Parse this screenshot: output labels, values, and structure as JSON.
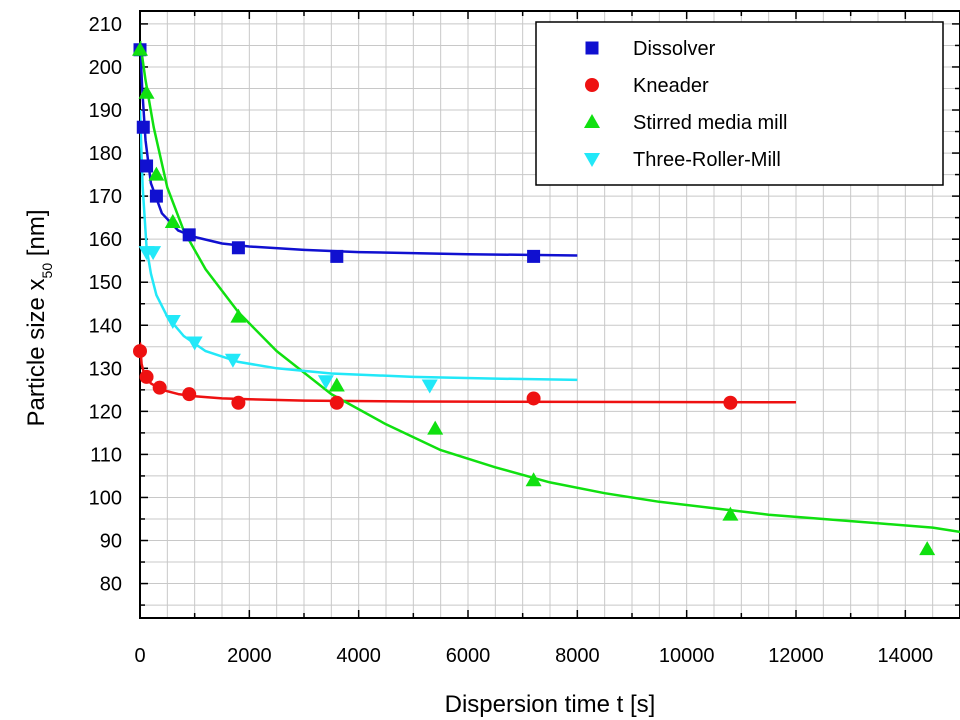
{
  "chart_data": {
    "type": "scatter",
    "xlabel": "Dispersion time t [s]",
    "ylabel": {
      "prefix": "Particle size x",
      "subscript": "50",
      "suffix": " [nm]"
    },
    "xlim": [
      0,
      15000
    ],
    "ylim": [
      72,
      213
    ],
    "x_ticks": [
      0,
      2000,
      4000,
      6000,
      8000,
      10000,
      12000,
      14000
    ],
    "y_ticks": [
      80,
      90,
      100,
      110,
      120,
      130,
      140,
      150,
      160,
      170,
      180,
      190,
      200,
      210
    ],
    "grid": true,
    "legend_position": "top-right",
    "series": [
      {
        "name": "Dissolver",
        "color": "#1010d0",
        "marker": "square",
        "points": [
          [
            0,
            204
          ],
          [
            60,
            186
          ],
          [
            120,
            177
          ],
          [
            300,
            170
          ],
          [
            900,
            161
          ],
          [
            1800,
            158
          ],
          [
            3600,
            156
          ],
          [
            7200,
            156
          ]
        ],
        "fit": [
          [
            0,
            206
          ],
          [
            40,
            195
          ],
          [
            100,
            183
          ],
          [
            200,
            173
          ],
          [
            400,
            166
          ],
          [
            700,
            162
          ],
          [
            1000,
            160.5
          ],
          [
            1500,
            159
          ],
          [
            2000,
            158.3
          ],
          [
            3000,
            157.5
          ],
          [
            4000,
            157
          ],
          [
            6000,
            156.5
          ],
          [
            8000,
            156.2
          ]
        ]
      },
      {
        "name": "Kneader",
        "color": "#ee1111",
        "marker": "circle",
        "points": [
          [
            0,
            134
          ],
          [
            120,
            128
          ],
          [
            360,
            125.5
          ],
          [
            900,
            124
          ],
          [
            1800,
            122
          ],
          [
            3600,
            122
          ],
          [
            7200,
            123
          ],
          [
            10800,
            122
          ]
        ],
        "fit": [
          [
            0,
            136
          ],
          [
            30,
            131
          ],
          [
            80,
            128.5
          ],
          [
            200,
            126.5
          ],
          [
            400,
            125
          ],
          [
            700,
            124
          ],
          [
            1000,
            123.5
          ],
          [
            1500,
            123
          ],
          [
            2000,
            122.8
          ],
          [
            3000,
            122.5
          ],
          [
            5000,
            122.3
          ],
          [
            8000,
            122.2
          ],
          [
            12000,
            122.1
          ]
        ]
      },
      {
        "name": "Stirred media mill",
        "color": "#10e010",
        "marker": "triangle-up",
        "points": [
          [
            0,
            204
          ],
          [
            120,
            194
          ],
          [
            300,
            175
          ],
          [
            600,
            164
          ],
          [
            1800,
            142
          ],
          [
            3600,
            126
          ],
          [
            5400,
            116
          ],
          [
            7200,
            104
          ],
          [
            10800,
            96
          ],
          [
            14400,
            88
          ]
        ],
        "fit": [
          [
            0,
            206
          ],
          [
            100,
            197
          ],
          [
            250,
            186
          ],
          [
            500,
            172
          ],
          [
            800,
            162
          ],
          [
            1200,
            153
          ],
          [
            1800,
            143
          ],
          [
            2500,
            134
          ],
          [
            3500,
            124
          ],
          [
            4500,
            117
          ],
          [
            5500,
            111
          ],
          [
            6500,
            107
          ],
          [
            7500,
            103.5
          ],
          [
            8500,
            101
          ],
          [
            9500,
            99
          ],
          [
            10500,
            97.5
          ],
          [
            11500,
            96
          ],
          [
            12500,
            95
          ],
          [
            13500,
            94
          ],
          [
            14500,
            93
          ],
          [
            15000,
            92
          ]
        ]
      },
      {
        "name": "Three-Roller-Mill",
        "color": "#22e8f8",
        "marker": "triangle-down",
        "points": [
          [
            120,
            157
          ],
          [
            240,
            157
          ],
          [
            600,
            141
          ],
          [
            1000,
            136
          ],
          [
            1700,
            132
          ],
          [
            3400,
            127
          ],
          [
            5300,
            126
          ]
        ],
        "fit": [
          [
            0,
            190
          ],
          [
            50,
            172
          ],
          [
            120,
            158
          ],
          [
            200,
            152
          ],
          [
            300,
            147
          ],
          [
            500,
            142
          ],
          [
            800,
            137.5
          ],
          [
            1200,
            134
          ],
          [
            1800,
            131.5
          ],
          [
            2500,
            130
          ],
          [
            3500,
            128.8
          ],
          [
            5000,
            128
          ],
          [
            6500,
            127.6
          ],
          [
            8000,
            127.3
          ]
        ]
      }
    ]
  }
}
